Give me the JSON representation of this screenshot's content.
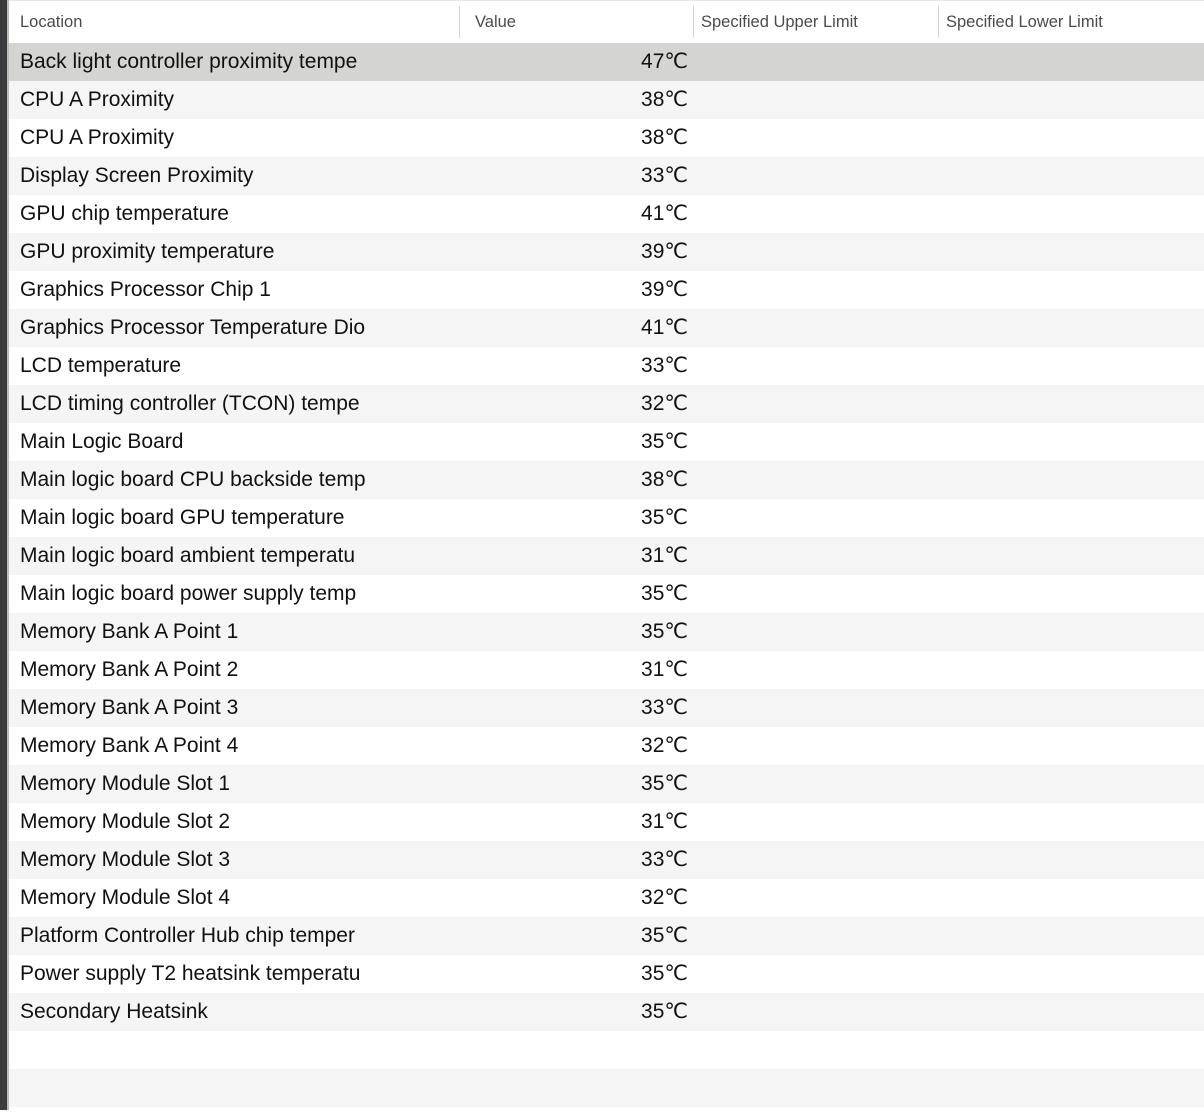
{
  "colors": {
    "left_strip": "#3c3c3e",
    "left_strip_separator": "#bcbcbc",
    "selected_row": "#d4d4d3",
    "alternate_row": "#f5f5f5",
    "header_text": "#4b4b4b",
    "row_text": "#111111"
  },
  "table": {
    "columns": [
      {
        "label": "Location"
      },
      {
        "label": "Value"
      },
      {
        "label": "Specified Upper Limit"
      },
      {
        "label": "Specified Lower Limit"
      }
    ],
    "rows": [
      {
        "location": "Back light controller proximity tempe",
        "value": "47℃",
        "upper": "",
        "lower": "",
        "selected": true
      },
      {
        "location": "CPU A Proximity",
        "value": "38℃",
        "upper": "",
        "lower": "",
        "selected": false
      },
      {
        "location": "CPU A Proximity",
        "value": "38℃",
        "upper": "",
        "lower": "",
        "selected": false
      },
      {
        "location": "Display Screen Proximity",
        "value": "33℃",
        "upper": "",
        "lower": "",
        "selected": false
      },
      {
        "location": "GPU chip temperature",
        "value": "41℃",
        "upper": "",
        "lower": "",
        "selected": false
      },
      {
        "location": "GPU proximity temperature",
        "value": "39℃",
        "upper": "",
        "lower": "",
        "selected": false
      },
      {
        "location": "Graphics Processor Chip 1",
        "value": "39℃",
        "upper": "",
        "lower": "",
        "selected": false
      },
      {
        "location": "Graphics Processor Temperature Dio",
        "value": "41℃",
        "upper": "",
        "lower": "",
        "selected": false
      },
      {
        "location": "LCD temperature",
        "value": "33℃",
        "upper": "",
        "lower": "",
        "selected": false
      },
      {
        "location": "LCD timing controller (TCON) tempe",
        "value": "32℃",
        "upper": "",
        "lower": "",
        "selected": false
      },
      {
        "location": "Main Logic Board",
        "value": "35℃",
        "upper": "",
        "lower": "",
        "selected": false
      },
      {
        "location": "Main logic board CPU backside temp",
        "value": "38℃",
        "upper": "",
        "lower": "",
        "selected": false
      },
      {
        "location": "Main logic board GPU temperature",
        "value": "35℃",
        "upper": "",
        "lower": "",
        "selected": false
      },
      {
        "location": "Main logic board ambient temperatu",
        "value": "31℃",
        "upper": "",
        "lower": "",
        "selected": false
      },
      {
        "location": "Main logic board power supply temp",
        "value": "35℃",
        "upper": "",
        "lower": "",
        "selected": false
      },
      {
        "location": "Memory Bank A Point 1",
        "value": "35℃",
        "upper": "",
        "lower": "",
        "selected": false
      },
      {
        "location": "Memory Bank A Point 2",
        "value": "31℃",
        "upper": "",
        "lower": "",
        "selected": false
      },
      {
        "location": "Memory Bank A Point 3",
        "value": "33℃",
        "upper": "",
        "lower": "",
        "selected": false
      },
      {
        "location": "Memory Bank A Point 4",
        "value": "32℃",
        "upper": "",
        "lower": "",
        "selected": false
      },
      {
        "location": "Memory Module Slot 1",
        "value": "35℃",
        "upper": "",
        "lower": "",
        "selected": false
      },
      {
        "location": "Memory Module Slot 2",
        "value": "31℃",
        "upper": "",
        "lower": "",
        "selected": false
      },
      {
        "location": "Memory Module Slot 3",
        "value": "33℃",
        "upper": "",
        "lower": "",
        "selected": false
      },
      {
        "location": "Memory Module Slot 4",
        "value": "32℃",
        "upper": "",
        "lower": "",
        "selected": false
      },
      {
        "location": "Platform Controller Hub chip temper",
        "value": "35℃",
        "upper": "",
        "lower": "",
        "selected": false
      },
      {
        "location": "Power supply T2 heatsink temperatu",
        "value": "35℃",
        "upper": "",
        "lower": "",
        "selected": false
      },
      {
        "location": "Secondary Heatsink",
        "value": "35℃",
        "upper": "",
        "lower": "",
        "selected": false
      }
    ]
  }
}
